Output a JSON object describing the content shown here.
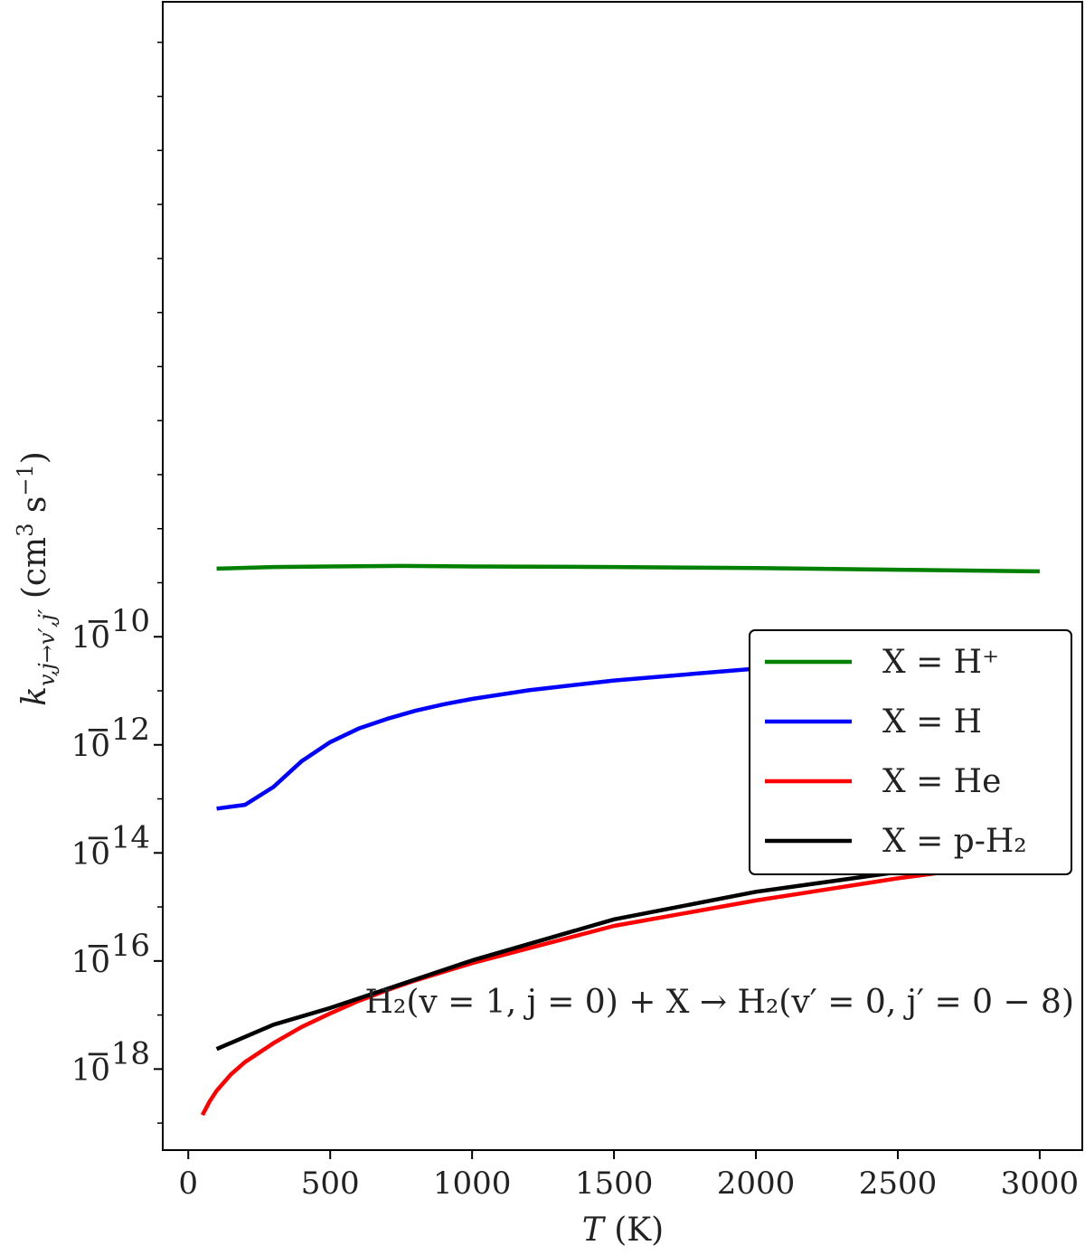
{
  "chart_data": {
    "type": "line",
    "xlabel": "T (K)",
    "ylabel": "k_{v,j→v′,j′} (cm³ s⁻¹)",
    "yscale": "log",
    "xlim": [
      -90,
      3150
    ],
    "ylim": [
      -19.5,
      1.75
    ],
    "xticks": [
      {
        "value": 0,
        "label": "0"
      },
      {
        "value": 500,
        "label": "500"
      },
      {
        "value": 1000,
        "label": "1000"
      },
      {
        "value": 1500,
        "label": "1500"
      },
      {
        "value": 2000,
        "label": "2000"
      },
      {
        "value": 2500,
        "label": "2500"
      },
      {
        "value": 3000,
        "label": "3000"
      }
    ],
    "yticks": [
      {
        "exp": -10,
        "base": "10",
        "sup": "−10"
      },
      {
        "exp": -12,
        "base": "10",
        "sup": "−12"
      },
      {
        "exp": -14,
        "base": "10",
        "sup": "−14"
      },
      {
        "exp": -16,
        "base": "10",
        "sup": "−16"
      },
      {
        "exp": -18,
        "base": "10",
        "sup": "−18"
      }
    ],
    "grid": false,
    "legend_position": "center-right",
    "annotation": "H₂(v = 1, j = 0) + X → H₂(v′ = 0, j′ = 0 − 8)",
    "series": [
      {
        "name": "X = H⁺",
        "color": "#008000",
        "x": [
          100,
          300,
          500,
          750,
          1000,
          1500,
          2000,
          2500,
          3000
        ],
        "log10y": [
          -8.74,
          -8.71,
          -8.7,
          -8.69,
          -8.7,
          -8.71,
          -8.73,
          -8.76,
          -8.79
        ]
      },
      {
        "name": "X = H",
        "color": "#0000ff",
        "x": [
          100,
          200,
          300,
          400,
          500,
          600,
          700,
          800,
          900,
          1000,
          1200,
          1500,
          2000,
          2500,
          3000
        ],
        "log10y": [
          -13.18,
          -13.11,
          -12.78,
          -12.3,
          -11.95,
          -11.7,
          -11.52,
          -11.37,
          -11.25,
          -11.15,
          -10.99,
          -10.81,
          -10.59,
          -10.43,
          -10.33
        ]
      },
      {
        "name": "X = He",
        "color": "#ff0000",
        "x": [
          50,
          75,
          100,
          150,
          200,
          300,
          400,
          500,
          600,
          700,
          800,
          1000,
          1500,
          2000,
          2500,
          3000
        ],
        "log10y": [
          -18.85,
          -18.6,
          -18.4,
          -18.1,
          -17.87,
          -17.52,
          -17.22,
          -16.97,
          -16.74,
          -16.54,
          -16.36,
          -16.04,
          -15.35,
          -14.88,
          -14.47,
          -14.12
        ]
      },
      {
        "name": "X = p-H₂",
        "color": "#000000",
        "x": [
          100,
          300,
          500,
          1000,
          1500,
          2000,
          3000
        ],
        "log10y": [
          -17.63,
          -17.18,
          -16.87,
          -15.99,
          -15.23,
          -14.72,
          -13.99
        ]
      }
    ]
  }
}
